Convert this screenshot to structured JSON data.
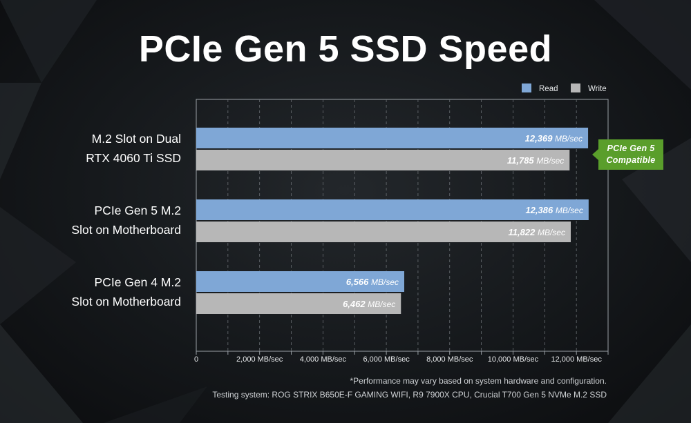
{
  "title": "PCIe Gen 5 SSD Speed",
  "badge": {
    "line1": "PCIe Gen 5",
    "line2": "Compatible"
  },
  "footnotes": [
    "*Performance may vary based on system hardware and configuration.",
    "Testing system: ROG STRIX B650E-F GAMING WIFI, R9 7900X CPU, Crucial T700 Gen 5 NVMe M.2 SSD"
  ],
  "colors": {
    "read": "#7fa7d6",
    "write": "#b7b7b7",
    "badge": "#5a9e2b"
  },
  "chart_data": {
    "type": "bar",
    "orientation": "horizontal",
    "title": "PCIe Gen 5 SSD Speed",
    "categories": [
      [
        "M.2 Slot on Dual",
        "RTX 4060 Ti SSD"
      ],
      [
        "PCIe Gen 5 M.2",
        "Slot on Motherboard"
      ],
      [
        "PCIe Gen 4 M.2",
        "Slot on Motherboard"
      ]
    ],
    "series": [
      {
        "name": "Read",
        "values": [
          12369,
          12386,
          6566
        ],
        "labels": [
          "12,369",
          "12,386",
          "6,566"
        ]
      },
      {
        "name": "Write",
        "values": [
          11785,
          11822,
          6462
        ],
        "labels": [
          "11,785",
          "11,822",
          "6,462"
        ]
      }
    ],
    "unit": "MB/sec",
    "xlim": [
      0,
      13000
    ],
    "xticks": [
      {
        "value": 0,
        "label": "0"
      },
      {
        "value": 2000,
        "label": "2,000 MB/sec"
      },
      {
        "value": 4000,
        "label": "4,000 MB/sec"
      },
      {
        "value": 6000,
        "label": "6,000 MB/sec"
      },
      {
        "value": 8000,
        "label": "8,000 MB/sec"
      },
      {
        "value": 10000,
        "label": "10,000 MB/sec"
      },
      {
        "value": 12000,
        "label": "12,000 MB/sec"
      }
    ],
    "legend": {
      "position": "top-right"
    },
    "grid": true
  }
}
